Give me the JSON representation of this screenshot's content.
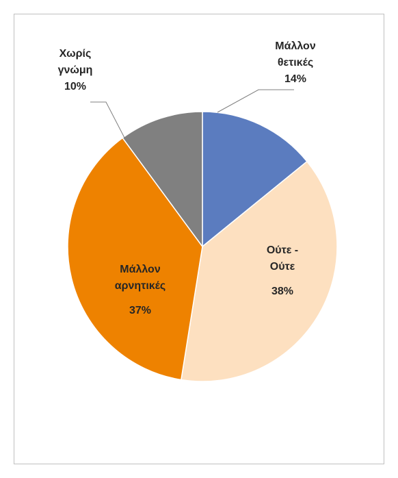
{
  "chart_data": {
    "type": "pie",
    "title": "",
    "start_angle_deg": 0,
    "direction": "clockwise",
    "slices": [
      {
        "label_lines": [
          "Μάλλον",
          "θετικές"
        ],
        "percent_label": "14%",
        "value": 14,
        "color": "#5b7cbf"
      },
      {
        "label_lines": [
          "Ούτε -",
          "Ούτε"
        ],
        "percent_label": "38%",
        "value": 38,
        "color": "#fde0c0"
      },
      {
        "label_lines": [
          "Μάλλον",
          "αρνητικές"
        ],
        "percent_label": "37%",
        "value": 37,
        "color": "#ee8200"
      },
      {
        "label_lines": [
          "Χωρίς",
          "γνώμη"
        ],
        "percent_label": "10%",
        "value": 10,
        "color": "#808080"
      }
    ],
    "leader_lines": true,
    "legend": false
  }
}
